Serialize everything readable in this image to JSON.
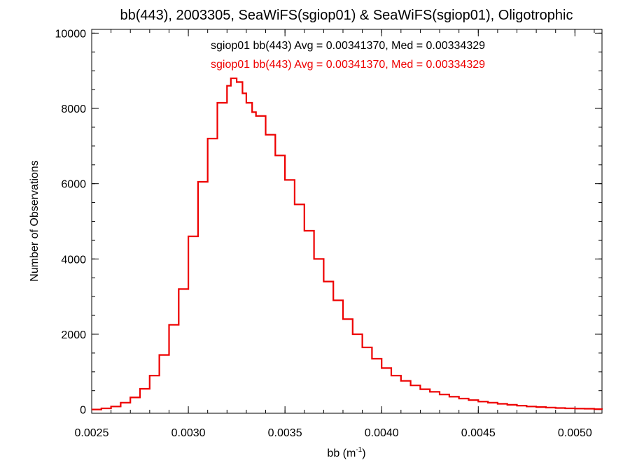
{
  "chart_data": {
    "type": "line",
    "step": true,
    "title": "bb(443), 2003305, SeaWiFS(sgiop01) & SeaWiFS(sgiop01), Oligotrophic",
    "xlabel": "bb (m",
    "xlabel_sup": "-1",
    "xlabel_suffix": ")",
    "ylabel": "Number of Observations",
    "xlim": [
      0.0025,
      0.00514
    ],
    "ylim": [
      -100,
      10100
    ],
    "x_ticks": [
      0.0025,
      0.003,
      0.0035,
      0.004,
      0.0045,
      0.005
    ],
    "x_tick_labels": [
      "0.0025",
      "0.0030",
      "0.0035",
      "0.0040",
      "0.0045",
      "0.0050"
    ],
    "y_ticks": [
      0,
      2000,
      4000,
      6000,
      8000,
      10000
    ],
    "y_tick_labels": [
      "0",
      "2000",
      "4000",
      "6000",
      "8000",
      "10000"
    ],
    "annotations": [
      "sgiop01 bb(443) Avg = 0.00341370, Med = 0.00334329",
      "sgiop01 bb(443) Avg = 0.00341370, Med = 0.00334329"
    ],
    "colors": {
      "series1": "#000000",
      "series2": "#ee0000"
    },
    "series": [
      {
        "color": "#000000",
        "x": [
          0.0025,
          0.00255,
          0.0026,
          0.00265,
          0.0027,
          0.00275,
          0.0028,
          0.00285,
          0.0029,
          0.00295,
          0.003,
          0.00305,
          0.0031,
          0.00315,
          0.0032,
          0.00322,
          0.00325,
          0.00328,
          0.0033,
          0.00333,
          0.00335,
          0.0034,
          0.00345,
          0.0035,
          0.00355,
          0.0036,
          0.00365,
          0.0037,
          0.00375,
          0.0038,
          0.00385,
          0.0039,
          0.00395,
          0.004,
          0.00405,
          0.0041,
          0.00415,
          0.0042,
          0.00425,
          0.0043,
          0.00435,
          0.0044,
          0.00445,
          0.0045,
          0.00455,
          0.0046,
          0.00465,
          0.0047,
          0.00475,
          0.0048,
          0.00485,
          0.0049,
          0.00495,
          0.005,
          0.00505,
          0.0051,
          0.00514
        ],
        "y": [
          0,
          30,
          80,
          180,
          320,
          550,
          900,
          1450,
          2250,
          3200,
          4600,
          6050,
          7200,
          8150,
          8600,
          8800,
          8700,
          8400,
          8150,
          7900,
          7800,
          7300,
          6750,
          6100,
          5450,
          4750,
          4000,
          3400,
          2900,
          2400,
          2000,
          1650,
          1350,
          1100,
          900,
          760,
          640,
          540,
          470,
          400,
          340,
          290,
          250,
          210,
          180,
          150,
          125,
          100,
          80,
          65,
          50,
          40,
          30,
          25,
          20,
          10,
          0
        ]
      },
      {
        "color": "#ee0000",
        "x": [
          0.0025,
          0.00255,
          0.0026,
          0.00265,
          0.0027,
          0.00275,
          0.0028,
          0.00285,
          0.0029,
          0.00295,
          0.003,
          0.00305,
          0.0031,
          0.00315,
          0.0032,
          0.00322,
          0.00325,
          0.00328,
          0.0033,
          0.00333,
          0.00335,
          0.0034,
          0.00345,
          0.0035,
          0.00355,
          0.0036,
          0.00365,
          0.0037,
          0.00375,
          0.0038,
          0.00385,
          0.0039,
          0.00395,
          0.004,
          0.00405,
          0.0041,
          0.00415,
          0.0042,
          0.00425,
          0.0043,
          0.00435,
          0.0044,
          0.00445,
          0.0045,
          0.00455,
          0.0046,
          0.00465,
          0.0047,
          0.00475,
          0.0048,
          0.00485,
          0.0049,
          0.00495,
          0.005,
          0.00505,
          0.0051,
          0.00514
        ],
        "y": [
          0,
          30,
          80,
          180,
          320,
          550,
          900,
          1450,
          2250,
          3200,
          4600,
          6050,
          7200,
          8150,
          8600,
          8800,
          8700,
          8400,
          8150,
          7900,
          7800,
          7300,
          6750,
          6100,
          5450,
          4750,
          4000,
          3400,
          2900,
          2400,
          2000,
          1650,
          1350,
          1100,
          900,
          760,
          640,
          540,
          470,
          400,
          340,
          290,
          250,
          210,
          180,
          150,
          125,
          100,
          80,
          65,
          50,
          40,
          30,
          25,
          20,
          10,
          0
        ]
      }
    ]
  }
}
